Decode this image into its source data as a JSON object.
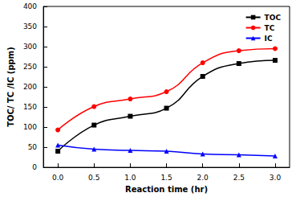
{
  "chart_data": {
    "type": "line",
    "x_label": "Reaction time (hr)",
    "y_label": "TOC/ TC /IC (ppm)",
    "x": [
      0,
      0.5,
      1.0,
      1.5,
      2.0,
      2.5,
      3.0
    ],
    "series": [
      {
        "name": "TOC",
        "color": "#000000",
        "marker": "square",
        "line_style": "solid",
        "values": [
          40,
          105,
          127,
          147,
          226,
          258,
          266
        ]
      },
      {
        "name": "TC",
        "color": "#ff0000",
        "marker": "circle",
        "line_style": "solid",
        "values": [
          93,
          151,
          170,
          188,
          260,
          290,
          295
        ]
      },
      {
        "name": "IC",
        "color": "#0000ff",
        "marker": "triangle",
        "line_style": "solid",
        "values": [
          55,
          45,
          42,
          40,
          33,
          31,
          28
        ]
      }
    ],
    "xlim": [
      -0.2,
      3.2
    ],
    "xticks": [
      {
        "value": 0,
        "label": "0.0"
      },
      {
        "value": 0.5,
        "label": "0.5"
      },
      {
        "value": 1.0,
        "label": "1.0"
      },
      {
        "value": 1.5,
        "label": "1.5"
      },
      {
        "value": 2.0,
        "label": "2.0"
      },
      {
        "value": 2.5,
        "label": "2.5"
      },
      {
        "value": 3.0,
        "label": "3.0"
      }
    ],
    "ylim": [
      0,
      400
    ],
    "yticks": [
      0,
      50,
      100,
      150,
      200,
      250,
      300,
      350,
      400
    ],
    "grid": false,
    "legend": "upper right"
  }
}
